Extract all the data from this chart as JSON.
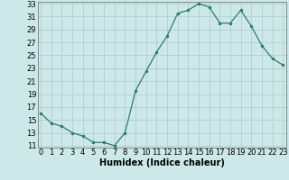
{
  "x": [
    0,
    1,
    2,
    3,
    4,
    5,
    6,
    7,
    8,
    9,
    10,
    11,
    12,
    13,
    14,
    15,
    16,
    17,
    18,
    19,
    20,
    21,
    22,
    23
  ],
  "y": [
    16,
    14.5,
    14,
    13,
    12.5,
    11.5,
    11.5,
    11,
    13,
    19.5,
    22.5,
    25.5,
    28,
    31.5,
    32,
    33,
    32.5,
    30,
    30,
    32,
    29.5,
    26.5,
    24.5,
    23.5
  ],
  "xlabel": "Humidex (Indice chaleur)",
  "ylim": [
    11,
    33
  ],
  "xlim": [
    -0.3,
    23.3
  ],
  "yticks": [
    11,
    13,
    15,
    17,
    19,
    21,
    23,
    25,
    27,
    29,
    31,
    33
  ],
  "xticks": [
    0,
    1,
    2,
    3,
    4,
    5,
    6,
    7,
    8,
    9,
    10,
    11,
    12,
    13,
    14,
    15,
    16,
    17,
    18,
    19,
    20,
    21,
    22,
    23
  ],
  "line_color": "#2e7d6e",
  "marker_color": "#2e7d6e",
  "bg_color": "#cce8e8",
  "grid_color": "#b0d0d0",
  "label_fontsize": 7.0,
  "tick_fontsize": 6.0
}
